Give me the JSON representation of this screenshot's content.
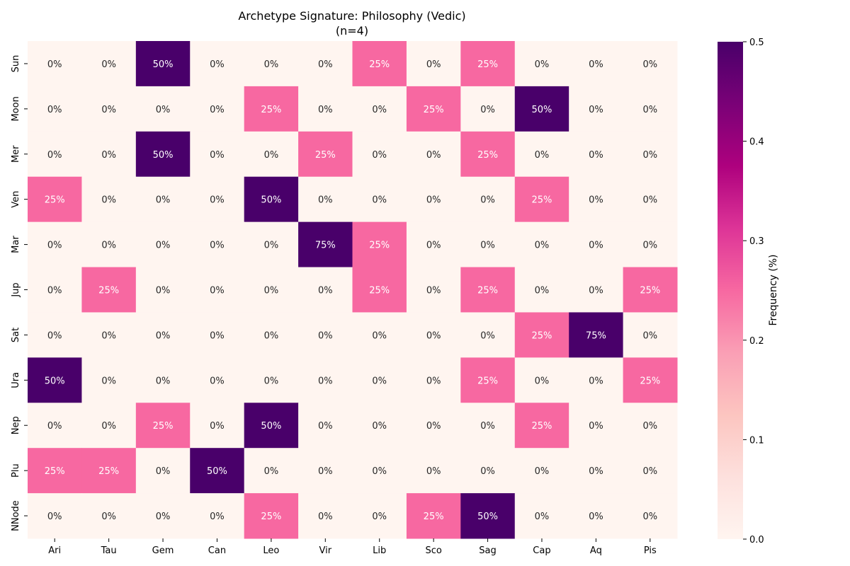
{
  "chart_data": {
    "type": "heatmap",
    "title": "Archetype Signature: Philosophy (Vedic)",
    "subtitle": "(n=4)",
    "xlabel": "",
    "ylabel": "",
    "x_categories": [
      "Ari",
      "Tau",
      "Gem",
      "Can",
      "Leo",
      "Vir",
      "Lib",
      "Sco",
      "Sag",
      "Cap",
      "Aq",
      "Pis"
    ],
    "y_categories": [
      "Sun",
      "Moon",
      "Mer",
      "Ven",
      "Mar",
      "Jup",
      "Sat",
      "Ura",
      "Nep",
      "Plu",
      "NNode"
    ],
    "values": [
      [
        0,
        0,
        0.5,
        0,
        0,
        0,
        0.25,
        0,
        0.25,
        0,
        0,
        0
      ],
      [
        0,
        0,
        0,
        0,
        0.25,
        0,
        0,
        0.25,
        0,
        0.5,
        0,
        0
      ],
      [
        0,
        0,
        0.5,
        0,
        0,
        0.25,
        0,
        0,
        0.25,
        0,
        0,
        0
      ],
      [
        0.25,
        0,
        0,
        0,
        0.5,
        0,
        0,
        0,
        0,
        0.25,
        0,
        0
      ],
      [
        0,
        0,
        0,
        0,
        0,
        0.75,
        0.25,
        0,
        0,
        0,
        0,
        0
      ],
      [
        0,
        0.25,
        0,
        0,
        0,
        0,
        0.25,
        0,
        0.25,
        0,
        0,
        0.25
      ],
      [
        0,
        0,
        0,
        0,
        0,
        0,
        0,
        0,
        0,
        0.25,
        0.75,
        0
      ],
      [
        0.5,
        0,
        0,
        0,
        0,
        0,
        0,
        0,
        0.25,
        0,
        0,
        0.25
      ],
      [
        0,
        0,
        0.25,
        0,
        0.5,
        0,
        0,
        0,
        0,
        0.25,
        0,
        0
      ],
      [
        0.25,
        0.25,
        0,
        0.5,
        0,
        0,
        0,
        0,
        0,
        0,
        0,
        0
      ],
      [
        0,
        0,
        0,
        0,
        0.25,
        0,
        0,
        0.25,
        0.5,
        0,
        0,
        0
      ]
    ],
    "annotation_format": "percent",
    "colorbar": {
      "label": "Frequency (%)",
      "range": [
        0,
        0.5
      ],
      "ticks": [
        "0.0",
        "0.1",
        "0.2",
        "0.3",
        "0.4",
        "0.5"
      ],
      "colormap": [
        "#fff5f0",
        "#fde0dd",
        "#fcc5c0",
        "#fa9fb5",
        "#f768a1",
        "#dd3497",
        "#ae017e",
        "#7a0177",
        "#49006a"
      ]
    }
  }
}
